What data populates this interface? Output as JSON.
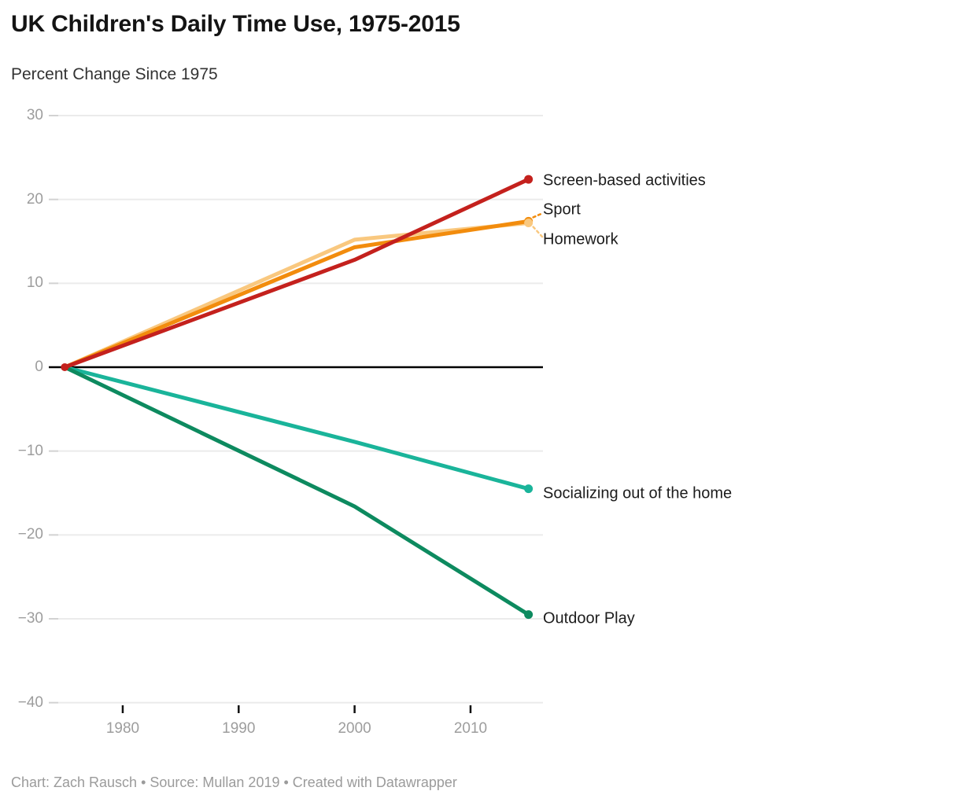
{
  "chart_data": {
    "type": "line",
    "title": "UK Children's Daily Time Use, 1975-2015",
    "subtitle": "Percent Change Since 1975",
    "unit": "percent change",
    "x": [
      1975,
      2000,
      2015
    ],
    "xlim": [
      1975,
      2015
    ],
    "ylim": [
      -40,
      30
    ],
    "grid": "horizontal only, light gray; zero baseline solid black",
    "legend_position": "direct labels right of line ends",
    "series": [
      {
        "name": "Screen-based activities",
        "color": "#c4211d",
        "values": [
          0,
          12.8,
          22.4
        ],
        "label_dy": 2
      },
      {
        "name": "Sport",
        "color": "#f28c0d",
        "values": [
          0,
          14.3,
          17.4
        ],
        "label_dy": -14
      },
      {
        "name": "Homework",
        "color": "#f9c87f",
        "values": [
          0,
          15.2,
          17.2
        ],
        "label_dy": 21.5
      },
      {
        "name": "Socializing out of the home",
        "color": "#1ab49a",
        "values": [
          0,
          -8.9,
          -14.5
        ],
        "label_dy": 6
      },
      {
        "name": "Outdoor Play",
        "color": "#0d8a5f",
        "values": [
          0,
          -16.6,
          -29.5
        ],
        "label_dy": 5
      }
    ],
    "xticks": [
      {
        "v": 1980,
        "label": "1980"
      },
      {
        "v": 1990,
        "label": "1990"
      },
      {
        "v": 2000,
        "label": "2000"
      },
      {
        "v": 2010,
        "label": "2010"
      }
    ],
    "yticks": [
      {
        "v": 30,
        "label": "30"
      },
      {
        "v": 20,
        "label": "20"
      },
      {
        "v": 10,
        "label": "10"
      },
      {
        "v": 0,
        "label": "0"
      },
      {
        "v": -10,
        "label": "−10"
      },
      {
        "v": -20,
        "label": "−20"
      },
      {
        "v": -30,
        "label": "−30"
      },
      {
        "v": -40,
        "label": "−40"
      }
    ]
  },
  "footer": {
    "credit": "Chart: Zach Rausch • Source: Mullan 2019 • Created with Datawrapper"
  },
  "colors": {
    "grid": "#ebebeb",
    "grid_tick": "#d2d2d2",
    "zero_line": "#000000",
    "axis_tick": "#111111",
    "axis_text": "#9d9d9d",
    "title_text": "#141414",
    "subtitle_text": "#333333",
    "series_label_text": "#1c1c1c",
    "footer_text": "#9b9b9b"
  }
}
